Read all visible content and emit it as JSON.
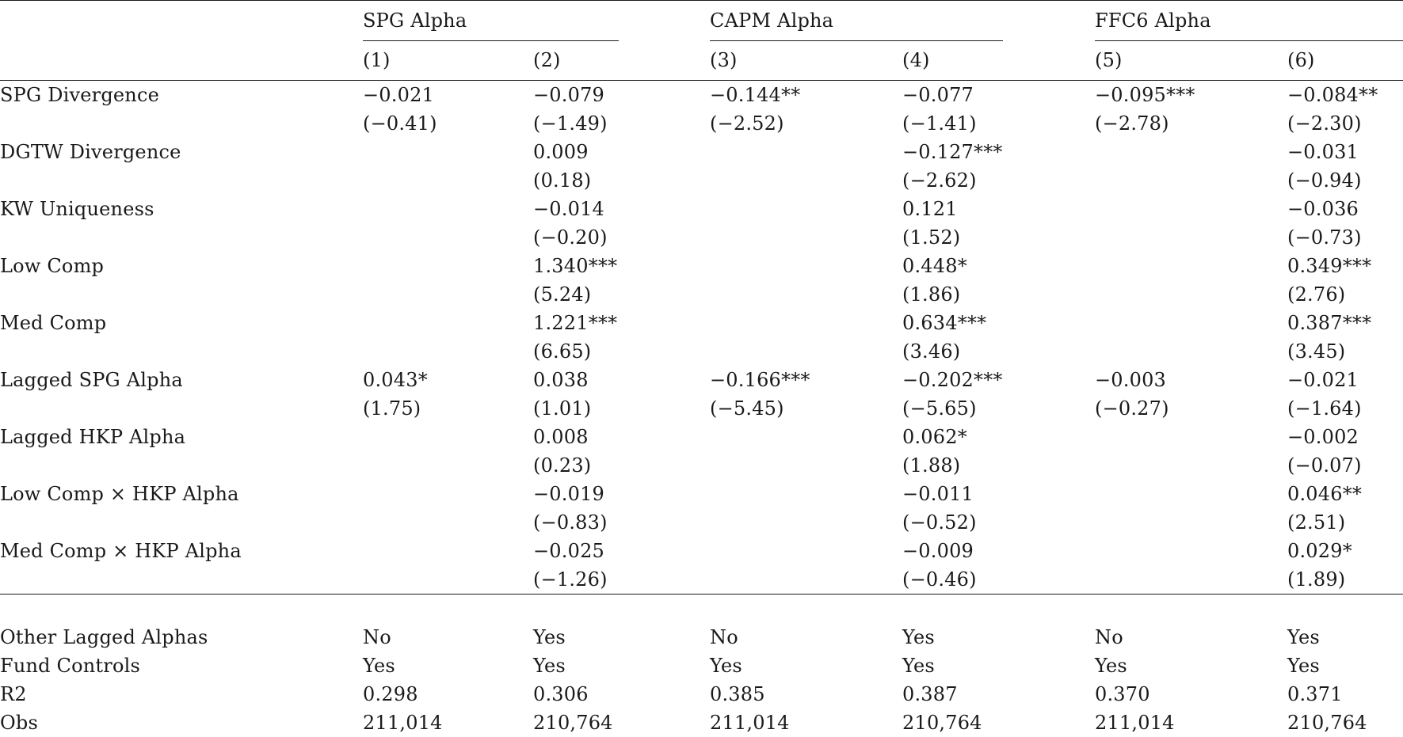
{
  "groups": [
    {
      "label": "SPG Alpha"
    },
    {
      "label": "CAPM Alpha"
    },
    {
      "label": "FFC6 Alpha"
    }
  ],
  "column_numbers": [
    "(1)",
    "(2)",
    "(3)",
    "(4)",
    "(5)",
    "(6)"
  ],
  "rows": [
    {
      "label": "SPG Divergence",
      "coef": [
        "−0.021",
        "−0.079",
        "−0.144**",
        "−0.077",
        "−0.095***",
        "−0.084**"
      ],
      "tstat": [
        "(−0.41)",
        "(−1.49)",
        "(−2.52)",
        "(−1.41)",
        "(−2.78)",
        "(−2.30)"
      ]
    },
    {
      "label": "DGTW Divergence",
      "coef": [
        "",
        "0.009",
        "",
        "−0.127***",
        "",
        "−0.031"
      ],
      "tstat": [
        "",
        "(0.18)",
        "",
        "(−2.62)",
        "",
        "(−0.94)"
      ]
    },
    {
      "label": "KW Uniqueness",
      "coef": [
        "",
        "−0.014",
        "",
        "0.121",
        "",
        "−0.036"
      ],
      "tstat": [
        "",
        "(−0.20)",
        "",
        "(1.52)",
        "",
        "(−0.73)"
      ]
    },
    {
      "label": "Low Comp",
      "coef": [
        "",
        "1.340***",
        "",
        "0.448*",
        "",
        "0.349***"
      ],
      "tstat": [
        "",
        "(5.24)",
        "",
        "(1.86)",
        "",
        "(2.76)"
      ]
    },
    {
      "label": "Med Comp",
      "coef": [
        "",
        "1.221***",
        "",
        "0.634***",
        "",
        "0.387***"
      ],
      "tstat": [
        "",
        "(6.65)",
        "",
        "(3.46)",
        "",
        "(3.45)"
      ]
    },
    {
      "label": "Lagged SPG Alpha",
      "coef": [
        "0.043*",
        "0.038",
        "−0.166***",
        "−0.202***",
        "−0.003",
        "−0.021"
      ],
      "tstat": [
        "(1.75)",
        "(1.01)",
        "(−5.45)",
        "(−5.65)",
        "(−0.27)",
        "(−1.64)"
      ]
    },
    {
      "label": "Lagged HKP Alpha",
      "coef": [
        "",
        "0.008",
        "",
        "0.062*",
        "",
        "−0.002"
      ],
      "tstat": [
        "",
        "(0.23)",
        "",
        "(1.88)",
        "",
        "(−0.07)"
      ]
    },
    {
      "label": "Low Comp × HKP Alpha",
      "coef": [
        "",
        "−0.019",
        "",
        "−0.011",
        "",
        "0.046**"
      ],
      "tstat": [
        "",
        "(−0.83)",
        "",
        "(−0.52)",
        "",
        "(2.51)"
      ]
    },
    {
      "label": "Med Comp × HKP Alpha",
      "coef": [
        "",
        "−0.025",
        "",
        "−0.009",
        "",
        "0.029*"
      ],
      "tstat": [
        "",
        "(−1.26)",
        "",
        "(−0.46)",
        "",
        "(1.89)"
      ]
    }
  ],
  "footer_rows": [
    {
      "label": "Other Lagged Alphas",
      "values": [
        "No",
        "Yes",
        "No",
        "Yes",
        "No",
        "Yes"
      ]
    },
    {
      "label": "Fund Controls",
      "values": [
        "Yes",
        "Yes",
        "Yes",
        "Yes",
        "Yes",
        "Yes"
      ]
    },
    {
      "label": "R2",
      "values": [
        "0.298",
        "0.306",
        "0.385",
        "0.387",
        "0.370",
        "0.371"
      ]
    },
    {
      "label": "Obs",
      "values": [
        "211,014",
        "210,764",
        "211,014",
        "210,764",
        "211,014",
        "210,764"
      ]
    }
  ]
}
